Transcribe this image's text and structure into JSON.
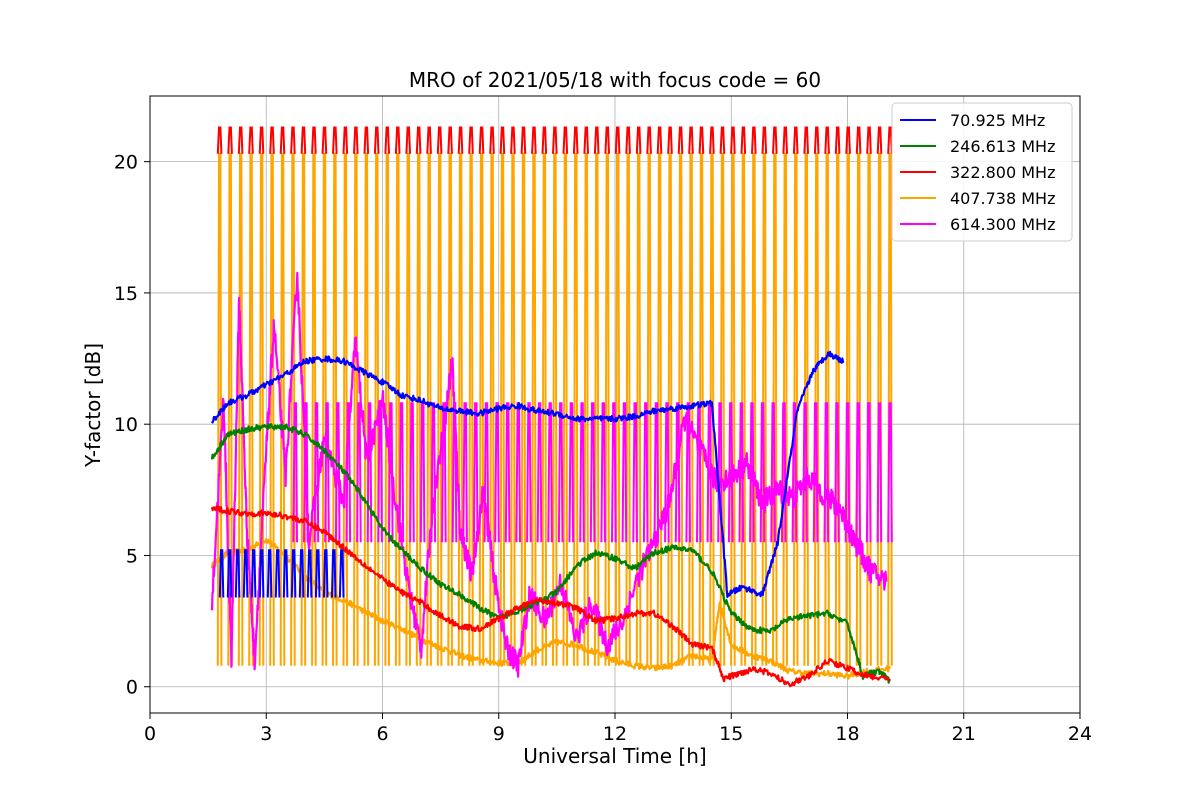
{
  "chart_data": {
    "type": "line",
    "title": "MRO of 2021/05/18 with focus code = 60",
    "xlabel": "Universal Time [h]",
    "ylabel": "Y-factor [dB]",
    "xlim": [
      0,
      24
    ],
    "ylim": [
      -1,
      22.5
    ],
    "xticks": [
      0,
      3,
      6,
      9,
      12,
      15,
      18,
      21,
      24
    ],
    "yticks": [
      0,
      5,
      10,
      15,
      20
    ],
    "grid": true,
    "legend_position": "top-right",
    "series": [
      {
        "name": " 70.925 MHz",
        "color": "#0000ff",
        "x": [
          1.6,
          2.0,
          2.5,
          3.0,
          3.5,
          4.0,
          4.5,
          5.0,
          5.5,
          6.0,
          6.5,
          7.0,
          7.5,
          8.0,
          8.5,
          9.0,
          9.5,
          10.0,
          10.5,
          11.0,
          11.5,
          12.0,
          12.5,
          13.0,
          13.5,
          14.0,
          14.5,
          14.9,
          15.3,
          15.8,
          16.2,
          16.7,
          17.1,
          17.5,
          17.9
        ],
        "y": [
          10.1,
          10.8,
          11.1,
          11.5,
          11.9,
          12.4,
          12.5,
          12.4,
          12.0,
          11.6,
          11.1,
          10.9,
          10.6,
          10.5,
          10.4,
          10.6,
          10.7,
          10.5,
          10.4,
          10.2,
          10.2,
          10.2,
          10.3,
          10.5,
          10.6,
          10.7,
          10.8,
          3.5,
          3.8,
          3.5,
          5.5,
          10.5,
          12.0,
          12.7,
          12.4
        ],
        "spikes": {
          "base": 3.4,
          "top": 5.2,
          "x_range": [
            1.8,
            4.9
          ],
          "count": 16
        }
      },
      {
        "name": "246.613 MHz",
        "color": "#008000",
        "x": [
          1.6,
          2.0,
          2.5,
          3.0,
          3.5,
          4.0,
          4.5,
          5.0,
          5.5,
          6.0,
          6.5,
          7.0,
          7.5,
          8.0,
          8.5,
          9.0,
          9.5,
          10.0,
          10.5,
          11.0,
          11.5,
          12.0,
          12.5,
          13.0,
          13.5,
          14.0,
          14.5,
          15.0,
          15.5,
          16.0,
          16.5,
          17.0,
          17.5,
          18.0,
          18.4,
          18.8,
          19.1
        ],
        "y": [
          8.7,
          9.6,
          9.8,
          9.9,
          9.9,
          9.6,
          9.0,
          8.2,
          7.2,
          6.0,
          5.2,
          4.5,
          3.9,
          3.5,
          3.0,
          2.6,
          2.9,
          3.2,
          3.6,
          4.6,
          5.1,
          4.9,
          4.5,
          5.1,
          5.3,
          5.2,
          4.4,
          2.8,
          2.2,
          2.1,
          2.6,
          2.7,
          2.8,
          2.4,
          0.4,
          0.6,
          0.2
        ]
      },
      {
        "name": "322.800 MHz",
        "color": "#ff0000",
        "x": [
          1.6,
          2.0,
          2.5,
          3.0,
          3.5,
          4.0,
          4.5,
          5.0,
          5.5,
          6.0,
          6.5,
          7.0,
          7.5,
          8.0,
          8.5,
          9.0,
          9.5,
          10.0,
          10.5,
          11.0,
          11.5,
          12.0,
          12.5,
          13.0,
          13.5,
          14.0,
          14.5,
          14.8,
          15.2,
          15.6,
          16.0,
          16.5,
          17.0,
          17.5,
          18.0,
          18.5,
          19.1
        ],
        "y": [
          6.8,
          6.7,
          6.6,
          6.6,
          6.5,
          6.3,
          5.9,
          5.3,
          4.7,
          4.1,
          3.6,
          3.2,
          2.7,
          2.3,
          2.2,
          2.6,
          3.0,
          3.3,
          3.2,
          3.0,
          2.5,
          2.6,
          2.8,
          2.8,
          2.3,
          1.6,
          1.5,
          0.3,
          0.5,
          0.7,
          0.5,
          0.1,
          0.4,
          1.0,
          0.7,
          0.4,
          0.3
        ],
        "spikes": {
          "base": 20.3,
          "top": 21.3,
          "x_range": [
            1.75,
            19.05
          ],
          "count": 65
        }
      },
      {
        "name": "407.738 MHz",
        "color": "#ffa500",
        "x": [
          1.6,
          2.0,
          2.5,
          3.0,
          3.5,
          4.0,
          4.5,
          5.0,
          5.5,
          6.0,
          6.5,
          7.0,
          7.5,
          8.0,
          8.5,
          9.0,
          9.5,
          10.0,
          10.5,
          11.0,
          11.5,
          12.0,
          12.5,
          13.0,
          13.5,
          14.0,
          14.5,
          14.7,
          15.0,
          15.5,
          16.0,
          16.5,
          17.0,
          17.5,
          18.0,
          18.5,
          19.1
        ],
        "y": [
          4.6,
          5.1,
          5.2,
          5.6,
          5.0,
          4.2,
          3.6,
          3.3,
          2.9,
          2.5,
          2.2,
          1.8,
          1.5,
          1.2,
          1.0,
          0.9,
          0.9,
          1.4,
          1.7,
          1.6,
          1.3,
          1.0,
          0.8,
          0.7,
          0.8,
          1.2,
          1.0,
          3.2,
          1.6,
          1.2,
          1.0,
          0.6,
          0.5,
          0.5,
          0.4,
          0.6,
          0.7
        ],
        "spikes": {
          "base": 0.8,
          "top": 20.3,
          "x_range": [
            1.75,
            19.05
          ],
          "count": 65
        }
      },
      {
        "name": "614.300 MHz",
        "color": "#ff00ff",
        "x": [
          1.6,
          1.9,
          2.1,
          2.3,
          2.5,
          2.7,
          3.0,
          3.2,
          3.5,
          3.8,
          4.1,
          4.5,
          5.0,
          5.3,
          5.6,
          6.0,
          6.3,
          6.7,
          7.0,
          7.3,
          7.6,
          7.8,
          8.0,
          8.3,
          8.6,
          8.9,
          9.2,
          9.5,
          9.8,
          10.2,
          10.6,
          11.0,
          11.4,
          11.8,
          12.2,
          12.6,
          13.0,
          13.4,
          13.8,
          14.2,
          14.6,
          15.0,
          15.4,
          15.8,
          16.2,
          16.6,
          17.0,
          17.4,
          17.8,
          18.2,
          18.6,
          19.0
        ],
        "y": [
          3.2,
          11.0,
          1.0,
          14.8,
          6.0,
          1.0,
          9.0,
          13.8,
          8.0,
          15.8,
          5.5,
          9.5,
          7.0,
          13.2,
          8.5,
          11.0,
          7.5,
          3.5,
          1.5,
          7.0,
          10.0,
          12.5,
          6.0,
          4.2,
          7.5,
          4.0,
          1.5,
          0.8,
          3.5,
          2.5,
          4.0,
          1.8,
          3.2,
          1.6,
          2.5,
          4.2,
          5.5,
          7.0,
          10.2,
          9.0,
          7.8,
          8.0,
          8.5,
          7.0,
          7.5,
          7.2,
          8.0,
          7.3,
          6.8,
          5.5,
          4.4,
          4.0
        ],
        "spikes": {
          "base": 5.5,
          "top": 10.8,
          "x_range": [
            3.7,
            19.05
          ],
          "count": 57
        }
      }
    ]
  }
}
